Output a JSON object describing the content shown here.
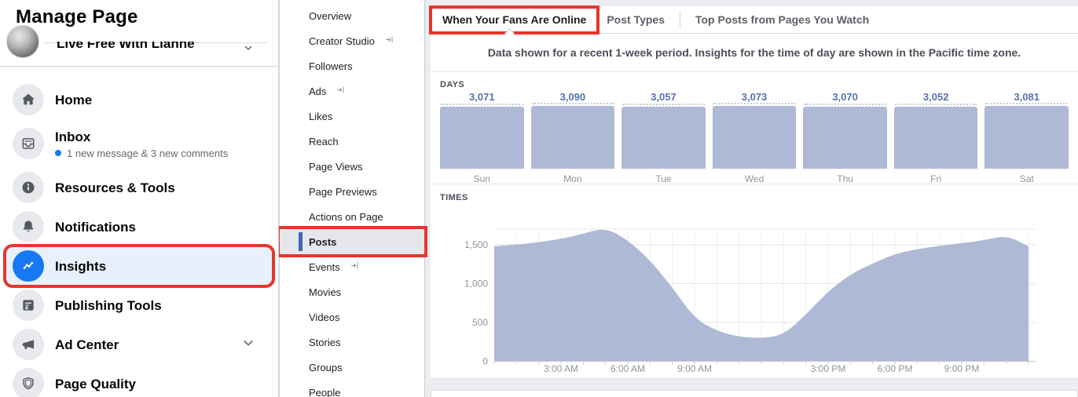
{
  "page": {
    "title": "Manage Page"
  },
  "left_sidebar": {
    "page_name": "Live Free With Lianne",
    "items": [
      {
        "label": "Home",
        "icon": "home-icon"
      },
      {
        "label": "Inbox",
        "icon": "inbox-icon",
        "badge": "1 new message & 3 new comments"
      },
      {
        "label": "Resources & Tools",
        "icon": "info-icon"
      },
      {
        "label": "Notifications",
        "icon": "bell-icon"
      },
      {
        "label": "Insights",
        "icon": "insights-icon",
        "selected": true,
        "annotated": true
      },
      {
        "label": "Publishing Tools",
        "icon": "publishing-icon"
      },
      {
        "label": "Ad Center",
        "icon": "megaphone-icon",
        "expandable": true
      },
      {
        "label": "Page Quality",
        "icon": "shield-icon"
      }
    ]
  },
  "insights_nav": {
    "items": [
      {
        "label": "Overview"
      },
      {
        "label": "Creator Studio",
        "external": true
      },
      {
        "label": "Followers"
      },
      {
        "label": "Ads",
        "external": true
      },
      {
        "label": "Likes"
      },
      {
        "label": "Reach"
      },
      {
        "label": "Page Views"
      },
      {
        "label": "Page Previews"
      },
      {
        "label": "Actions on Page"
      },
      {
        "label": "Posts",
        "selected": true,
        "annotated": true
      },
      {
        "label": "Events",
        "external": true
      },
      {
        "label": "Movies"
      },
      {
        "label": "Videos"
      },
      {
        "label": "Stories"
      },
      {
        "label": "Groups"
      },
      {
        "label": "People"
      }
    ]
  },
  "tabs": [
    {
      "label": "When Your Fans Are Online",
      "selected": true,
      "annotated": true
    },
    {
      "label": "Post Types"
    },
    {
      "label": "Top Posts from Pages You Watch"
    }
  ],
  "note": "Data shown for a recent 1-week period. Insights for the time of day are shown in the Pacific time zone.",
  "chart_data": [
    {
      "type": "bar",
      "title": "DAYS",
      "categories": [
        "Sun",
        "Mon",
        "Tue",
        "Wed",
        "Thu",
        "Fri",
        "Sat"
      ],
      "values": [
        3071,
        3090,
        3057,
        3073,
        3070,
        3052,
        3081
      ],
      "value_labels": [
        "3,071",
        "3,090",
        "3,057",
        "3,073",
        "3,070",
        "3,052",
        "3,081"
      ],
      "ylim": [
        0,
        3090
      ],
      "grid": false,
      "legend": "none"
    },
    {
      "type": "area",
      "title": "TIMES",
      "x_unit": "hour-of-day",
      "x": [
        0,
        1,
        2,
        3,
        4,
        5,
        6,
        7,
        8,
        9,
        10,
        11,
        12,
        13,
        14,
        15,
        16,
        17,
        18,
        19,
        20,
        21,
        22,
        23,
        24
      ],
      "values": [
        1480,
        1500,
        1530,
        1575,
        1640,
        1720,
        1560,
        1300,
        950,
        550,
        390,
        315,
        295,
        340,
        600,
        900,
        1120,
        1260,
        1380,
        1445,
        1485,
        1520,
        1555,
        1620,
        1480
      ],
      "x_tick_labels": [
        {
          "hour": 3,
          "label": "3:00 AM"
        },
        {
          "hour": 6,
          "label": "6:00 AM"
        },
        {
          "hour": 9,
          "label": "9:00 AM"
        },
        {
          "hour": 15,
          "label": "3:00 PM"
        },
        {
          "hour": 18,
          "label": "6:00 PM"
        },
        {
          "hour": 21,
          "label": "9:00 PM"
        }
      ],
      "y_ticks": [
        {
          "value": 0,
          "label": "0"
        },
        {
          "value": 500,
          "label": "500"
        },
        {
          "value": 1000,
          "label": "1,000"
        },
        {
          "value": 1500,
          "label": "1,500"
        }
      ],
      "ylim": [
        0,
        1796
      ],
      "grid": true,
      "legend": "none"
    }
  ],
  "colors": {
    "accent": "#1877f2",
    "chart_fill": "#aeb9d5",
    "value_label": "#5472b0",
    "annotation_red": "#e8352e",
    "selected_nav_bar": "#4267b2"
  }
}
